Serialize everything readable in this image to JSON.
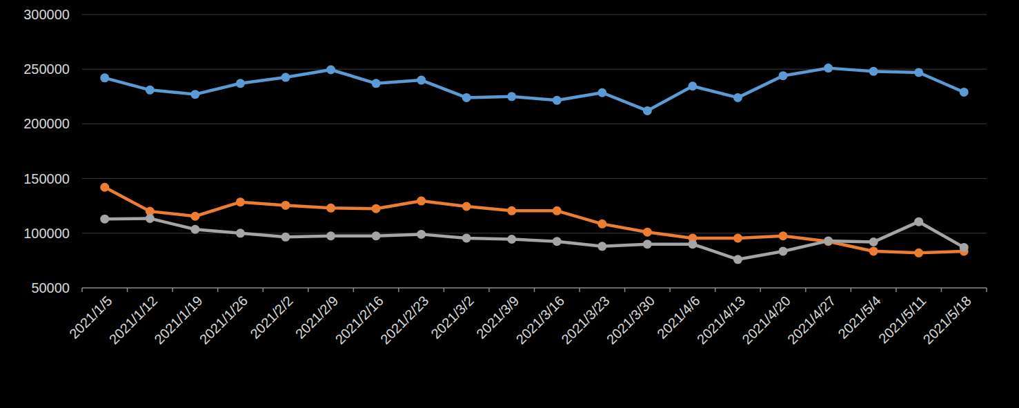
{
  "chart_data": {
    "type": "line",
    "categories": [
      "2021/1/5",
      "2021/1/12",
      "2021/1/19",
      "2021/1/26",
      "2021/2/2",
      "2021/2/9",
      "2021/2/16",
      "2021/2/23",
      "2021/3/2",
      "2021/3/9",
      "2021/3/16",
      "2021/3/23",
      "2021/3/30",
      "2021/4/6",
      "2021/4/13",
      "2021/4/20",
      "2021/4/27",
      "2021/5/4",
      "2021/5/11",
      "2021/5/18"
    ],
    "series": [
      {
        "color": "#5b9bd5",
        "values": [
          242000,
          231000,
          227000,
          237000,
          242500,
          249500,
          237000,
          240000,
          224000,
          225000,
          221500,
          228500,
          212000,
          234500,
          224000,
          244000,
          251000,
          248000,
          247000,
          229000
        ]
      },
      {
        "color": "#ed7d31",
        "values": [
          142000,
          120000,
          115500,
          128500,
          125500,
          123000,
          122500,
          129500,
          124500,
          120500,
          120500,
          108500,
          101000,
          95500,
          95500,
          97500,
          92500,
          83500,
          82000,
          83500
        ]
      },
      {
        "color": "#a5a5a5",
        "values": [
          113000,
          113500,
          103500,
          100000,
          96500,
          97500,
          97500,
          99000,
          95500,
          94500,
          92500,
          88000,
          90000,
          90000,
          76000,
          83500,
          93000,
          92000,
          110500,
          87000
        ]
      }
    ],
    "ylim": [
      50000,
      300000
    ],
    "yticks": [
      50000,
      100000,
      150000,
      200000,
      250000,
      300000
    ],
    "grid": true,
    "marker": "circle"
  }
}
